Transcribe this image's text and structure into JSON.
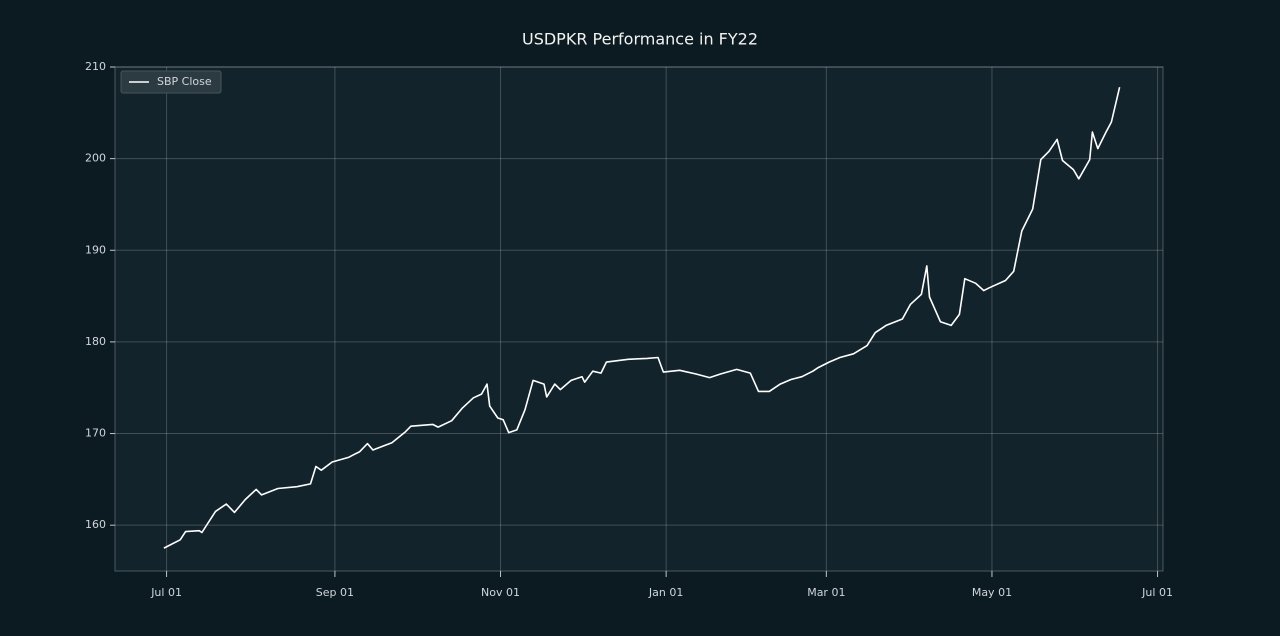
{
  "chart_data": {
    "type": "line",
    "title": "USDPKR Performance in FY22",
    "x": [
      "Jun 30",
      "Jul 06",
      "Jul 08",
      "Jul 13",
      "Jul 14",
      "Jul 19",
      "Jul 23",
      "Jul 26",
      "Jul 30",
      "Aug 03",
      "Aug 05",
      "Aug 11",
      "Aug 18",
      "Aug 23",
      "Aug 25",
      "Aug 27",
      "Aug 31",
      "Sep 06",
      "Sep 08",
      "Sep 10",
      "Sep 13",
      "Sep 15",
      "Sep 22",
      "Sep 27",
      "Sep 29",
      "Oct 07",
      "Oct 09",
      "Oct 14",
      "Oct 18",
      "Oct 22",
      "Oct 25",
      "Oct 27",
      "Oct 28",
      "Oct 31",
      "Nov 02",
      "Nov 04",
      "Nov 07",
      "Nov 10",
      "Nov 13",
      "Nov 17",
      "Nov 18",
      "Nov 21",
      "Nov 23",
      "Nov 27",
      "Dec 01",
      "Dec 02",
      "Dec 05",
      "Dec 08",
      "Dec 10",
      "Dec 18",
      "Dec 25",
      "Dec 29",
      "Dec 31",
      "Jan 06",
      "Jan 12",
      "Jan 17",
      "Jan 21",
      "Jan 27",
      "Feb 01",
      "Feb 04",
      "Feb 08",
      "Feb 12",
      "Feb 16",
      "Feb 20",
      "Feb 24",
      "Feb 26",
      "Mar 02",
      "Mar 06",
      "Mar 11",
      "Mar 16",
      "Mar 19",
      "Mar 23",
      "Mar 29",
      "Apr 01",
      "Apr 05",
      "Apr 07",
      "Apr 08",
      "Apr 12",
      "Apr 16",
      "Apr 19",
      "Apr 21",
      "Apr 25",
      "Apr 28",
      "Apr 30",
      "May 06",
      "May 09",
      "May 12",
      "May 16",
      "May 19",
      "May 22",
      "May 25",
      "May 27",
      "May 31",
      "Jun 02",
      "Jun 06",
      "Jun 07",
      "Jun 09",
      "Jun 12",
      "Jun 14",
      "Jun 17"
    ],
    "series": [
      {
        "name": "SBP Close",
        "color": "#ffffff",
        "values": [
          157.5,
          158.4,
          159.3,
          159.4,
          159.2,
          161.5,
          162.3,
          161.4,
          162.8,
          163.9,
          163.3,
          164.0,
          164.2,
          164.5,
          166.4,
          166.0,
          166.9,
          167.4,
          167.7,
          168.0,
          168.9,
          168.2,
          169.0,
          170.2,
          170.8,
          171.0,
          170.7,
          171.4,
          172.8,
          173.9,
          174.3,
          175.4,
          173.0,
          171.7,
          171.5,
          170.1,
          170.4,
          172.6,
          175.8,
          175.4,
          174.0,
          175.4,
          174.8,
          175.8,
          176.2,
          175.6,
          176.8,
          176.6,
          177.8,
          178.1,
          178.2,
          178.3,
          176.7,
          176.9,
          176.5,
          176.1,
          176.5,
          177.0,
          176.6,
          174.6,
          174.6,
          175.4,
          175.9,
          176.2,
          176.8,
          177.2,
          177.8,
          178.3,
          178.7,
          179.6,
          181.0,
          181.8,
          182.5,
          184.1,
          185.2,
          188.3,
          184.9,
          182.2,
          181.8,
          183.0,
          186.9,
          186.4,
          185.6,
          185.9,
          186.7,
          187.7,
          192.1,
          194.5,
          199.9,
          200.8,
          202.1,
          199.8,
          198.8,
          197.8,
          199.9,
          202.9,
          201.1,
          202.9,
          204.0,
          207.8
        ]
      }
    ],
    "xlim": [
      "Jun 12",
      "Jul 03"
    ],
    "xticks": [
      "Jul 01",
      "Sep 01",
      "Nov 01",
      "Jan 01",
      "Mar 01",
      "May 01",
      "Jul 01"
    ],
    "ylim": [
      155,
      210
    ],
    "yticks": [
      160,
      170,
      180,
      190,
      200,
      210
    ],
    "grid": true,
    "legend": "upper left"
  }
}
